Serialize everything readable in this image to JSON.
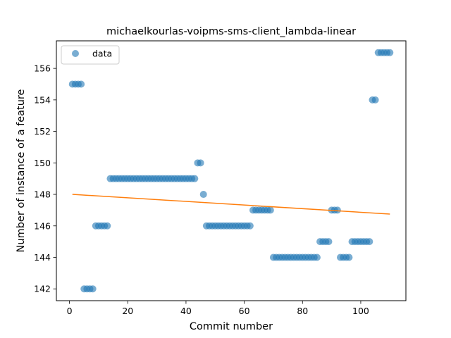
{
  "chart_data": {
    "type": "scatter",
    "title": "michaelkourlas-voipms-sms-client_lambda-linear",
    "xlabel": "Commit number",
    "ylabel": "Number of instance of a feature",
    "xlim": [
      -4.5,
      115.5
    ],
    "ylim": [
      141.25,
      157.75
    ],
    "xticks": [
      0,
      20,
      40,
      60,
      80,
      100
    ],
    "yticks": [
      142,
      144,
      146,
      148,
      150,
      152,
      154,
      156
    ],
    "grid": false,
    "legend_position": "top-left",
    "colors": {
      "points": "#1f77b4",
      "fit": "#ff7f0e"
    },
    "series": [
      {
        "name": "data",
        "kind": "scatter",
        "x": [
          1,
          2,
          3,
          4,
          5,
          6,
          7,
          8,
          9,
          10,
          11,
          12,
          13,
          14,
          15,
          16,
          17,
          18,
          19,
          20,
          21,
          22,
          23,
          24,
          25,
          26,
          27,
          28,
          29,
          30,
          31,
          32,
          33,
          34,
          35,
          36,
          37,
          38,
          39,
          40,
          41,
          42,
          43,
          44,
          45,
          46,
          47,
          48,
          49,
          50,
          51,
          52,
          53,
          54,
          55,
          56,
          57,
          58,
          59,
          60,
          61,
          62,
          63,
          64,
          65,
          66,
          67,
          68,
          69,
          70,
          71,
          72,
          73,
          74,
          75,
          76,
          77,
          78,
          79,
          80,
          81,
          82,
          83,
          84,
          85,
          86,
          87,
          88,
          89,
          90,
          91,
          92,
          93,
          94,
          95,
          96,
          97,
          98,
          99,
          100,
          101,
          102,
          103,
          104,
          105,
          106,
          107,
          108,
          109,
          110
        ],
        "y": [
          155,
          155,
          155,
          155,
          142,
          142,
          142,
          142,
          146,
          146,
          146,
          146,
          146,
          149,
          149,
          149,
          149,
          149,
          149,
          149,
          149,
          149,
          149,
          149,
          149,
          149,
          149,
          149,
          149,
          149,
          149,
          149,
          149,
          149,
          149,
          149,
          149,
          149,
          149,
          149,
          149,
          149,
          149,
          150,
          150,
          148,
          146,
          146,
          146,
          146,
          146,
          146,
          146,
          146,
          146,
          146,
          146,
          146,
          146,
          146,
          146,
          146,
          147,
          147,
          147,
          147,
          147,
          147,
          147,
          144,
          144,
          144,
          144,
          144,
          144,
          144,
          144,
          144,
          144,
          144,
          144,
          144,
          144,
          144,
          144,
          145,
          145,
          145,
          145,
          147,
          147,
          147,
          144,
          144,
          144,
          144,
          145,
          145,
          145,
          145,
          145,
          145,
          145,
          154,
          154,
          157,
          157,
          157,
          157,
          157
        ]
      },
      {
        "name": "",
        "kind": "line",
        "x": [
          1,
          110
        ],
        "y": [
          148.0,
          146.75
        ]
      }
    ]
  }
}
